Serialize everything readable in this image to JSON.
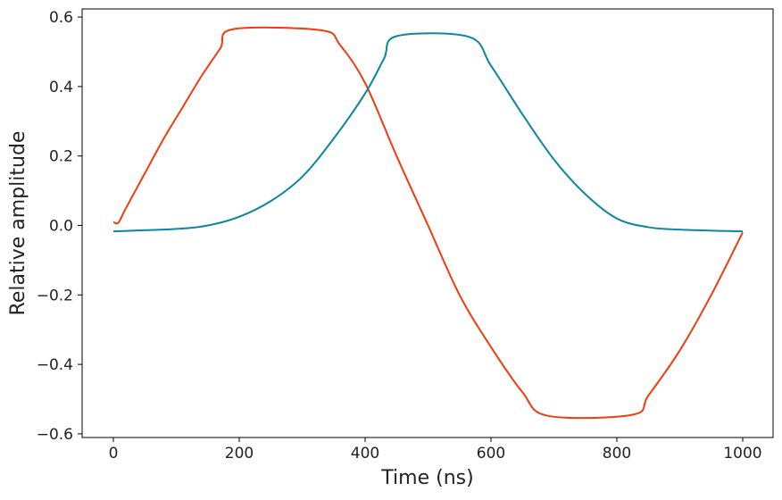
{
  "chart_data": {
    "type": "line",
    "title": "",
    "xlabel": "Time (ns)",
    "ylabel": "Relative amplitude",
    "xlim": [
      -50,
      1050
    ],
    "ylim": [
      -0.62,
      0.63
    ],
    "xticks": [
      0,
      200,
      400,
      600,
      800,
      1000
    ],
    "xtick_labels": [
      "0",
      "200",
      "400",
      "600",
      "800",
      "1000"
    ],
    "yticks": [
      -0.6,
      -0.4,
      -0.2,
      0.0,
      0.2,
      0.4,
      0.6
    ],
    "ytick_labels": [
      "−0.6",
      "−0.4",
      "−0.2",
      "0.0",
      "0.2",
      "0.4",
      "0.6"
    ],
    "grid": false,
    "series": [
      {
        "color": "#f03c0c",
        "x": [
          0,
          8,
          20,
          50,
          80,
          110,
          140,
          170,
          190,
          330,
          360,
          400,
          450,
          500,
          550,
          600,
          650,
          690,
          825,
          850,
          900,
          950,
          1000
        ],
        "y": [
          0.01,
          0.008,
          0.05,
          0.15,
          0.25,
          0.34,
          0.43,
          0.51,
          0.565,
          0.562,
          0.52,
          0.41,
          0.2,
          0.0,
          -0.2,
          -0.35,
          -0.48,
          -0.548,
          -0.545,
          -0.49,
          -0.36,
          -0.2,
          -0.02
        ]
      },
      {
        "color": "#0a86a0",
        "x": [
          0,
          100,
          150,
          200,
          250,
          300,
          350,
          400,
          430,
          450,
          565,
          600,
          650,
          700,
          750,
          800,
          850,
          900,
          1000
        ],
        "y": [
          -0.017,
          -0.01,
          0.0,
          0.025,
          0.07,
          0.14,
          0.25,
          0.38,
          0.48,
          0.545,
          0.543,
          0.46,
          0.32,
          0.19,
          0.09,
          0.02,
          -0.005,
          -0.012,
          -0.017
        ]
      }
    ]
  }
}
